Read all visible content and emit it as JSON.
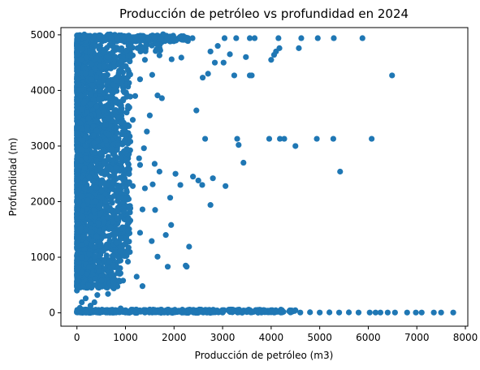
{
  "chart_data": {
    "type": "scatter",
    "title": "Producción de petróleo vs profundidad en 2024",
    "xlabel": "Producción de petróleo (m3)",
    "ylabel": "Profundidad (m)",
    "xlim": [
      -330,
      8050
    ],
    "ylim": [
      -240,
      5130
    ],
    "xticks": [
      0,
      1000,
      2000,
      3000,
      4000,
      5000,
      6000,
      7000,
      8000
    ],
    "xtick_labels": [
      "0",
      "1000",
      "2000",
      "3000",
      "4000",
      "5000",
      "6000",
      "7000",
      "8000"
    ],
    "yticks": [
      0,
      1000,
      2000,
      3000,
      4000,
      5000
    ],
    "ytick_labels": [
      "0",
      "1000",
      "2000",
      "3000",
      "4000",
      "5000"
    ],
    "grid": false,
    "marker_color": "#1f77b4",
    "series": [
      {
        "points": [
          [
            5880,
            4940
          ],
          [
            5290,
            4940
          ],
          [
            4960,
            4940
          ],
          [
            4620,
            4940
          ],
          [
            4150,
            4940
          ],
          [
            3660,
            4940
          ],
          [
            3560,
            4940
          ],
          [
            3280,
            4940
          ],
          [
            3040,
            4940
          ],
          [
            2900,
            4800
          ],
          [
            2750,
            4700
          ],
          [
            3150,
            4650
          ],
          [
            4170,
            4760
          ],
          [
            4100,
            4700
          ],
          [
            4060,
            4640
          ],
          [
            4000,
            4550
          ],
          [
            4570,
            4760
          ],
          [
            3480,
            4600
          ],
          [
            3020,
            4500
          ],
          [
            2840,
            4500
          ],
          [
            3600,
            4270
          ],
          [
            3560,
            4270
          ],
          [
            3240,
            4270
          ],
          [
            2700,
            4300
          ],
          [
            2590,
            4230
          ],
          [
            6490,
            4270
          ],
          [
            2460,
            3640
          ],
          [
            2640,
            3130
          ],
          [
            3300,
            3130
          ],
          [
            3330,
            3020
          ],
          [
            3960,
            3130
          ],
          [
            4180,
            3130
          ],
          [
            4270,
            3130
          ],
          [
            4500,
            3000
          ],
          [
            4940,
            3130
          ],
          [
            5280,
            3130
          ],
          [
            6070,
            3130
          ],
          [
            5420,
            2540
          ],
          [
            3430,
            2700
          ],
          [
            3060,
            2280
          ],
          [
            2800,
            2420
          ],
          [
            2580,
            2300
          ],
          [
            2500,
            2380
          ],
          [
            2750,
            1940
          ],
          [
            2310,
            1190
          ],
          [
            2260,
            830
          ],
          [
            2390,
            2450
          ],
          [
            2030,
            2500
          ],
          [
            2130,
            2300
          ],
          [
            1920,
            2070
          ],
          [
            1660,
            3910
          ],
          [
            1750,
            3860
          ],
          [
            1500,
            3550
          ],
          [
            1440,
            3260
          ],
          [
            1380,
            2960
          ],
          [
            1280,
            2780
          ],
          [
            1600,
            2680
          ],
          [
            1700,
            2540
          ],
          [
            1560,
            2310
          ],
          [
            1610,
            1850
          ],
          [
            1940,
            1580
          ],
          [
            1830,
            1400
          ],
          [
            1540,
            1290
          ],
          [
            1660,
            1010
          ],
          [
            1870,
            830
          ],
          [
            2240,
            850
          ],
          [
            1350,
            480
          ],
          [
            1230,
            650
          ],
          [
            1050,
            920
          ],
          [
            950,
            580
          ],
          [
            880,
            700
          ],
          [
            760,
            440
          ],
          [
            640,
            340
          ],
          [
            420,
            320
          ],
          [
            360,
            190
          ],
          [
            180,
            260
          ],
          [
            100,
            190
          ],
          [
            60,
            90
          ],
          [
            280,
            130
          ],
          [
            0,
            400
          ],
          [
            20,
            800
          ],
          [
            10,
            1200
          ],
          [
            30,
            1600
          ],
          [
            0,
            2000
          ],
          [
            15,
            2400
          ],
          [
            5,
            2800
          ],
          [
            25,
            3200
          ],
          [
            0,
            3600
          ],
          [
            10,
            4000
          ],
          [
            20,
            4400
          ],
          [
            0,
            4800
          ],
          [
            5,
            4990
          ],
          [
            110,
            1000
          ],
          [
            200,
            1500
          ],
          [
            90,
            2100
          ],
          [
            160,
            2600
          ],
          [
            120,
            3100
          ],
          [
            240,
            3500
          ],
          [
            80,
            3900
          ],
          [
            180,
            4300
          ],
          [
            270,
            4700
          ],
          [
            340,
            4950
          ],
          [
            460,
            4970
          ],
          [
            580,
            4900
          ],
          [
            700,
            4950
          ],
          [
            820,
            4940
          ],
          [
            950,
            4960
          ],
          [
            1080,
            4930
          ],
          [
            1210,
            4950
          ],
          [
            1340,
            4960
          ],
          [
            1470,
            4940
          ],
          [
            1600,
            4950
          ],
          [
            1730,
            4930
          ],
          [
            1860,
            4950
          ],
          [
            1990,
            4940
          ],
          [
            2120,
            4960
          ],
          [
            2250,
            4950
          ],
          [
            2380,
            4940
          ],
          [
            400,
            4580
          ],
          [
            650,
            4600
          ],
          [
            900,
            4520
          ],
          [
            1150,
            4630
          ],
          [
            1400,
            4550
          ],
          [
            1700,
            4630
          ],
          [
            1950,
            4560
          ],
          [
            2150,
            4590
          ],
          [
            300,
            4200
          ],
          [
            550,
            4260
          ],
          [
            800,
            4180
          ],
          [
            1050,
            4240
          ],
          [
            1300,
            4200
          ],
          [
            1550,
            4280
          ],
          [
            450,
            3850
          ],
          [
            700,
            3880
          ],
          [
            950,
            3820
          ],
          [
            1200,
            3900
          ],
          [
            400,
            3450
          ],
          [
            650,
            3500
          ],
          [
            900,
            3420
          ],
          [
            1150,
            3470
          ],
          [
            350,
            3050
          ],
          [
            600,
            3100
          ],
          [
            850,
            3020
          ],
          [
            1100,
            3080
          ],
          [
            300,
            2650
          ],
          [
            550,
            2700
          ],
          [
            800,
            2620
          ],
          [
            1050,
            2690
          ],
          [
            1300,
            2660
          ],
          [
            400,
            2250
          ],
          [
            650,
            2300
          ],
          [
            900,
            2220
          ],
          [
            1150,
            2280
          ],
          [
            1400,
            2240
          ],
          [
            350,
            1850
          ],
          [
            600,
            1900
          ],
          [
            850,
            1820
          ],
          [
            1100,
            1880
          ],
          [
            1350,
            1860
          ],
          [
            300,
            1450
          ],
          [
            550,
            1500
          ],
          [
            800,
            1420
          ],
          [
            1050,
            1480
          ],
          [
            1300,
            1440
          ],
          [
            250,
            1050
          ],
          [
            500,
            1100
          ],
          [
            750,
            1020
          ],
          [
            1000,
            1080
          ],
          [
            200,
            700
          ],
          [
            450,
            750
          ],
          [
            700,
            680
          ],
          [
            0,
            10
          ],
          [
            200,
            5
          ],
          [
            400,
            8
          ],
          [
            600,
            5
          ],
          [
            800,
            10
          ],
          [
            1000,
            5
          ],
          [
            1200,
            8
          ],
          [
            1400,
            5
          ],
          [
            1600,
            10
          ],
          [
            1800,
            5
          ],
          [
            2000,
            8
          ],
          [
            2200,
            5
          ],
          [
            2400,
            10
          ],
          [
            2600,
            5
          ],
          [
            2800,
            8
          ],
          [
            3000,
            5
          ],
          [
            3200,
            10
          ],
          [
            3400,
            5
          ],
          [
            3600,
            8
          ],
          [
            3800,
            5
          ],
          [
            4000,
            10
          ],
          [
            4200,
            5
          ],
          [
            4400,
            8
          ],
          [
            4600,
            5
          ],
          [
            4800,
            10
          ],
          [
            5000,
            5
          ],
          [
            5200,
            8
          ],
          [
            5400,
            5
          ],
          [
            5600,
            8
          ],
          [
            5800,
            5
          ],
          [
            6030,
            5
          ],
          [
            6150,
            5
          ],
          [
            6250,
            5
          ],
          [
            6400,
            5
          ],
          [
            6550,
            5
          ],
          [
            6800,
            5
          ],
          [
            6980,
            5
          ],
          [
            7100,
            5
          ],
          [
            7350,
            5
          ],
          [
            7500,
            5
          ],
          [
            7750,
            5
          ],
          [
            1500,
            60
          ],
          [
            2100,
            40
          ],
          [
            900,
            80
          ],
          [
            300,
            50
          ]
        ]
      }
    ]
  }
}
